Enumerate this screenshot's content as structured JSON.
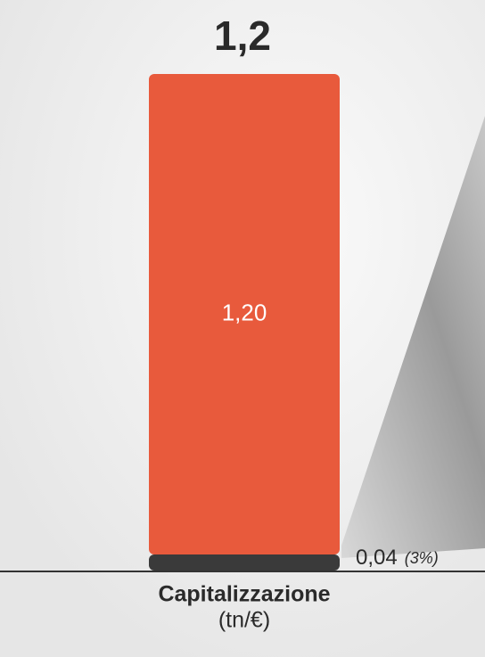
{
  "chart_data": {
    "type": "stacked_bar",
    "title": "1,2",
    "categories": [
      "Capitalizzazione"
    ],
    "xlabel": "(tn/€)",
    "series": [
      {
        "color": "#3a3a3a",
        "values": [
          0.04
        ],
        "value_labels": [
          "0,04"
        ]
      },
      {
        "color": "#e85a3c",
        "values": [
          1.2
        ],
        "value_labels": [
          "1,20"
        ]
      }
    ],
    "annotations": [
      "(3%)"
    ],
    "ylim": [
      0,
      1.24
    ]
  }
}
